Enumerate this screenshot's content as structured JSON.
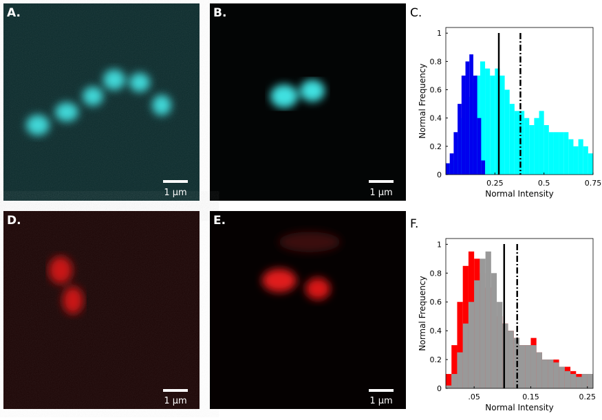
{
  "images": [
    {
      "label": "A.",
      "scale_bar": "1 µm"
    },
    {
      "label": "B.",
      "scale_bar": "1 µm"
    },
    {
      "label": "D.",
      "scale_bar": "1 µm"
    },
    {
      "label": "E.",
      "scale_bar": "1 µm"
    }
  ],
  "chart_data": [
    {
      "type": "histogram",
      "panel_label": "C.",
      "x_label": "Normal Intensity",
      "y_label": "Normal Frequency",
      "xlim": [
        0,
        0.75
      ],
      "xticks": [
        0.25,
        0.5,
        0.75
      ],
      "ylim": [
        0,
        1.04
      ],
      "yticks": [
        0,
        0.2,
        0.4,
        0.6,
        0.8,
        1
      ],
      "series": [
        {
          "color": "#00ffff",
          "bins": [
            0,
            0.025,
            0.05,
            0.075,
            0.1,
            0.125,
            0.15,
            0.175,
            0.2,
            0.225,
            0.25,
            0.275,
            0.3,
            0.325,
            0.35,
            0.375,
            0.4,
            0.425,
            0.45,
            0.475,
            0.5,
            0.525,
            0.55,
            0.575,
            0.6,
            0.625,
            0.65,
            0.675,
            0.7,
            0.725,
            0.75
          ],
          "values": [
            0.08,
            0.1,
            0.25,
            0.4,
            0.55,
            0.65,
            0.7,
            0.8,
            0.75,
            0.7,
            0.75,
            0.7,
            0.6,
            0.5,
            0.45,
            0.45,
            0.4,
            0.35,
            0.4,
            0.45,
            0.35,
            0.3,
            0.3,
            0.3,
            0.3,
            0.25,
            0.2,
            0.25,
            0.2,
            0.15
          ]
        },
        {
          "color": "#0000ee",
          "bins": [
            0,
            0.02,
            0.04,
            0.06,
            0.08,
            0.1,
            0.12,
            0.14,
            0.16,
            0.18,
            0.2
          ],
          "values": [
            0.08,
            0.15,
            0.3,
            0.5,
            0.7,
            0.8,
            0.85,
            0.7,
            0.4,
            0.1
          ]
        }
      ],
      "lines": [
        {
          "value": 0.27,
          "style": "solid"
        },
        {
          "value": 0.38,
          "style": "dashdot"
        }
      ]
    },
    {
      "type": "histogram",
      "panel_label": "F.",
      "x_label": "Normal Intensity",
      "y_label": "Normal Frequency",
      "xlim": [
        0,
        0.26
      ],
      "xticks": [
        {
          "value": 0.05,
          "label": ".05"
        },
        0.15,
        0.25
      ],
      "ylim": [
        0,
        1.04
      ],
      "yticks": [
        0,
        0.2,
        0.4,
        0.6,
        0.8,
        1
      ],
      "series": [
        {
          "color": "#ff0000",
          "bins": [
            0,
            0.01,
            0.02,
            0.03,
            0.04,
            0.05,
            0.06,
            0.07,
            0.08,
            0.09,
            0.1,
            0.11,
            0.12,
            0.13,
            0.14,
            0.15,
            0.16,
            0.17,
            0.18,
            0.19,
            0.2,
            0.21,
            0.22,
            0.23,
            0.24,
            0.25,
            0.26
          ],
          "values": [
            0.1,
            0.3,
            0.6,
            0.85,
            0.95,
            0.9,
            0.8,
            0.7,
            0.6,
            0.5,
            0.45,
            0.4,
            0.35,
            0.3,
            0.3,
            0.35,
            0.25,
            0.2,
            0.2,
            0.2,
            0.15,
            0.15,
            0.12,
            0.1,
            0.1,
            0.1
          ]
        },
        {
          "color": "#999999",
          "bins": [
            0,
            0.01,
            0.02,
            0.03,
            0.04,
            0.05,
            0.06,
            0.07,
            0.08,
            0.09,
            0.1,
            0.11,
            0.12,
            0.13,
            0.14,
            0.15,
            0.16,
            0.17,
            0.18,
            0.19,
            0.2,
            0.21,
            0.22,
            0.23,
            0.24,
            0.25,
            0.26
          ],
          "values": [
            0.02,
            0.1,
            0.25,
            0.45,
            0.6,
            0.75,
            0.9,
            0.95,
            0.8,
            0.6,
            0.45,
            0.4,
            0.35,
            0.3,
            0.3,
            0.3,
            0.25,
            0.2,
            0.2,
            0.18,
            0.15,
            0.12,
            0.1,
            0.08,
            0.1,
            0.1
          ]
        }
      ],
      "lines": [
        {
          "value": 0.103,
          "style": "solid"
        },
        {
          "value": 0.126,
          "style": "dashdot"
        }
      ]
    }
  ]
}
